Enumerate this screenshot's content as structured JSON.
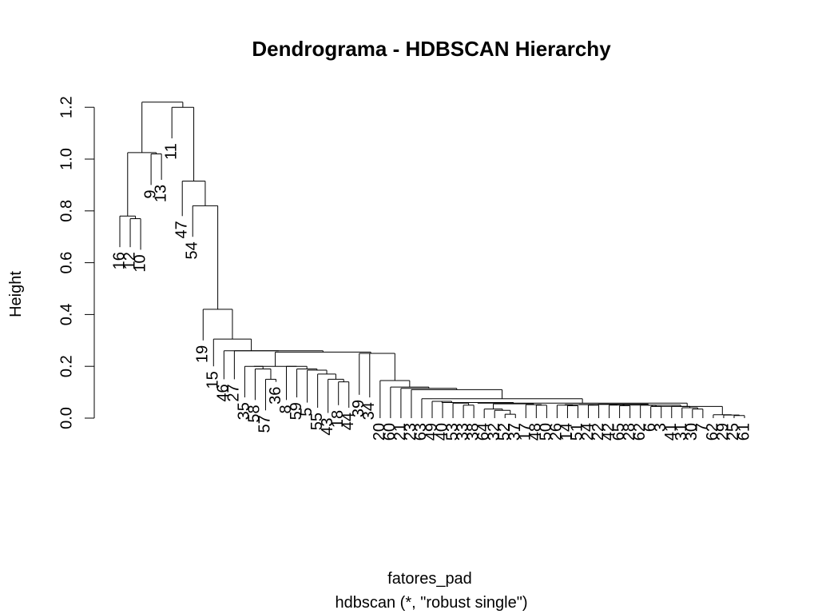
{
  "chart_data": {
    "type": "dendrogram",
    "title": "Dendrograma - HDBSCAN Hierarchy",
    "xlabel": "fatores_pad",
    "subtitle": "hdbscan (*, \"robust single\")",
    "ylabel": "Height",
    "ylim": [
      0,
      1.25
    ],
    "y_ticks": [
      0.0,
      0.2,
      0.4,
      0.6,
      0.8,
      1.0,
      1.2
    ],
    "y_tick_labels": [
      "0.0",
      "0.2",
      "0.4",
      "0.6",
      "0.8",
      "1.0",
      "1.2"
    ],
    "leaf_order": [
      "16",
      "12",
      "10",
      "9",
      "13",
      "11",
      "47",
      "54",
      "19",
      "15",
      "46",
      "27",
      "35",
      "58",
      "57",
      "36",
      "8",
      "59",
      "5",
      "55",
      "43",
      "18",
      "44",
      "39",
      "34",
      "20",
      "60",
      "21",
      "23",
      "63",
      "49",
      "40",
      "53",
      "33",
      "38",
      "64",
      "32",
      "52",
      "37",
      "17",
      "48",
      "50",
      "26",
      "14",
      "51",
      "24",
      "22",
      "42",
      "65",
      "28",
      "62",
      "6",
      "3",
      "41",
      "31",
      "30",
      "7",
      "62b",
      "29",
      "25",
      "61"
    ],
    "leaf_labels": [
      "16",
      "12",
      "10",
      "9",
      "13",
      "11",
      "47",
      "54",
      "19",
      "15",
      "46",
      "27",
      "35",
      "58",
      "57",
      "36",
      "8",
      "59",
      "5",
      "55",
      "43",
      "18",
      "44",
      "39",
      "34",
      "20",
      "60",
      "21",
      "23",
      "63",
      "49",
      "40",
      "53",
      "33",
      "38",
      "64",
      "32",
      "52",
      "37",
      "17",
      "48",
      "50",
      "26",
      "14",
      "51",
      "24",
      "22",
      "42",
      "65",
      "28",
      "62",
      "6",
      "3",
      "41",
      "31",
      "30",
      "7",
      "62",
      "29",
      "25",
      "61"
    ],
    "merges": [
      [
        "16",
        "12b",
        0.78
      ],
      [
        "12",
        "10",
        0.77
      ],
      [
        "12b",
        "rest",
        0.78
      ],
      [
        "9",
        "13",
        1.02
      ],
      [
        "A",
        "B",
        1.22
      ],
      [
        "11",
        "C",
        1.2
      ],
      [
        "47",
        "D",
        0.91
      ],
      [
        "54",
        "E",
        0.82
      ],
      [
        "19",
        "F",
        0.42
      ],
      [
        "15",
        "G",
        0.3
      ],
      [
        "46",
        "H",
        0.26
      ],
      [
        "27",
        "I",
        0.26
      ],
      [
        "35",
        "J",
        0.2
      ],
      [
        "58",
        "57",
        0.2
      ],
      [
        "57",
        "36",
        0.15
      ],
      [
        "8",
        "K",
        0.2
      ],
      [
        "59",
        "L",
        0.19
      ],
      [
        "5",
        "M",
        0.18
      ],
      [
        "55",
        "43",
        0.15
      ],
      [
        "43",
        "18",
        0.14
      ],
      [
        "44",
        "39",
        0.25
      ],
      [
        "34",
        "N",
        0.25
      ],
      [
        "20",
        "O",
        0.15
      ],
      [
        "60",
        "P",
        0.12
      ],
      [
        "21",
        "23",
        0.12
      ],
      [
        "63",
        "Q",
        0.075
      ],
      [
        "49",
        "40",
        0.065
      ],
      [
        "53",
        "R",
        0.06
      ],
      [
        "33",
        "S",
        0.058
      ],
      [
        "38",
        "T",
        0.05
      ],
      [
        "64",
        "32",
        0.035
      ],
      [
        "52",
        "37",
        0.03
      ],
      [
        "17",
        "U",
        0.05
      ],
      [
        "48",
        "50",
        0.05
      ],
      [
        "26",
        "V",
        0.05
      ],
      [
        "14",
        "W",
        0.05
      ],
      [
        "51",
        "24",
        0.05
      ],
      [
        "22",
        "42",
        0.05
      ],
      [
        "65",
        "28",
        0.05
      ],
      [
        "62",
        "6",
        0.045
      ],
      [
        "3",
        "41",
        0.05
      ],
      [
        "31",
        "30",
        0.04
      ],
      [
        "7",
        "62b",
        0.035
      ],
      [
        "29",
        "25",
        0.01
      ],
      [
        "25",
        "61",
        0.01
      ]
    ]
  }
}
